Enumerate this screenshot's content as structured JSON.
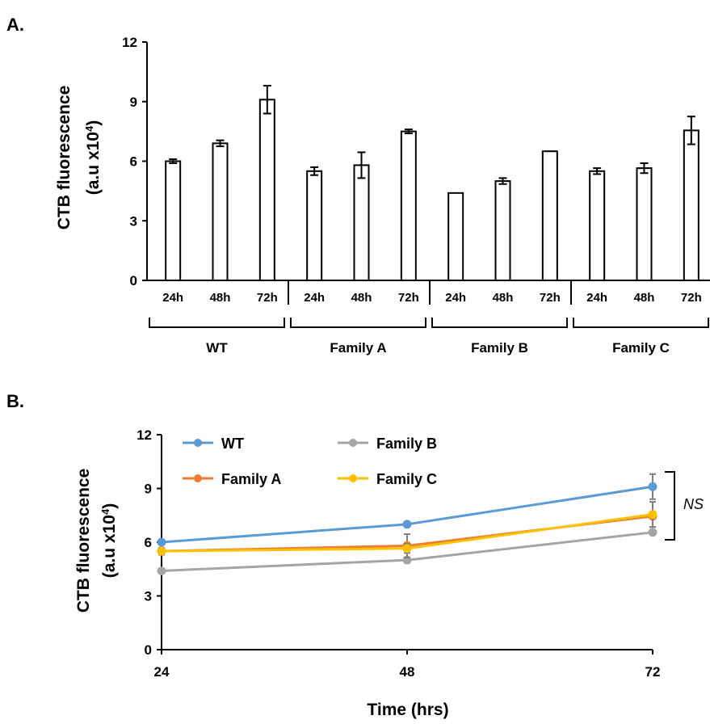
{
  "panels": {
    "a": "A.",
    "b": "B."
  },
  "colors": {
    "WT": "#5b9bd5",
    "Family A": "#ed7d31",
    "Family B": "#a5a5a5",
    "Family C": "#ffc000"
  },
  "chart_data": [
    {
      "type": "bar",
      "ylabel_line1": "CTB fluorescence",
      "ylabel_line2": "(a.u x10",
      "ylabel_sup": "4",
      "ylabel_close": ")",
      "ylim": [
        0,
        12
      ],
      "yticks": [
        0,
        3,
        6,
        9,
        12
      ],
      "groups": [
        "WT",
        "Family A",
        "Family B",
        "Family C"
      ],
      "categories": [
        "24h",
        "48h",
        "72h"
      ],
      "series": [
        {
          "group": "WT",
          "values": [
            6.0,
            6.9,
            9.1
          ],
          "errors": [
            0.1,
            0.15,
            0.7
          ]
        },
        {
          "group": "Family A",
          "values": [
            5.5,
            5.8,
            7.5
          ],
          "errors": [
            0.2,
            0.65,
            0.1
          ]
        },
        {
          "group": "Family B",
          "values": [
            4.4,
            5.0,
            6.5
          ],
          "errors": [
            0.0,
            0.15,
            0.0
          ]
        },
        {
          "group": "Family C",
          "values": [
            5.5,
            5.65,
            7.55
          ],
          "errors": [
            0.15,
            0.25,
            0.7
          ]
        }
      ],
      "bar_fill": "#ffffff"
    },
    {
      "type": "line",
      "ylabel_line1": "CTB fluorescence",
      "ylabel_line2": "(a.u x10",
      "ylabel_sup": "4",
      "ylabel_close": ")",
      "xlabel": "Time (hrs)",
      "x": [
        24,
        48,
        72
      ],
      "ylim": [
        0,
        12
      ],
      "yticks": [
        0,
        3,
        6,
        9,
        12
      ],
      "series": [
        {
          "name": "WT",
          "values": [
            6.0,
            7.0,
            9.1
          ],
          "errors": [
            0.1,
            0.15,
            0.7
          ]
        },
        {
          "name": "Family B",
          "values": [
            4.4,
            5.0,
            6.55
          ],
          "errors": [
            0.0,
            0.15,
            0.0
          ]
        },
        {
          "name": "Family A",
          "values": [
            5.5,
            5.8,
            7.45
          ],
          "errors": [
            0.2,
            0.65,
            0.1
          ]
        },
        {
          "name": "Family C",
          "values": [
            5.5,
            5.65,
            7.55
          ],
          "errors": [
            0.15,
            0.25,
            0.7
          ]
        }
      ],
      "annotation": "NS"
    }
  ]
}
